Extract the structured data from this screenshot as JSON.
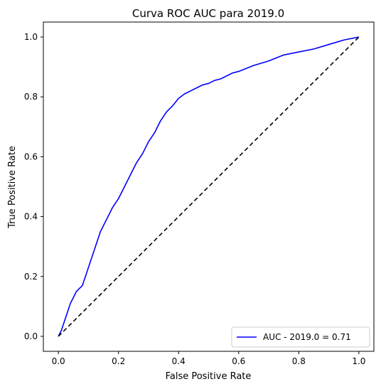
{
  "chart_data": {
    "type": "line",
    "title": "Curva ROC AUC para 2019.0",
    "xlabel": "False Positive Rate",
    "ylabel": "True Positive Rate",
    "xlim": [
      -0.05,
      1.05
    ],
    "ylim": [
      -0.05,
      1.05
    ],
    "xticks": [
      "0.0",
      "0.2",
      "0.4",
      "0.6",
      "0.8",
      "1.0"
    ],
    "yticks": [
      "0.0",
      "0.2",
      "0.4",
      "0.6",
      "0.8",
      "1.0"
    ],
    "grid": false,
    "legend_position": "lower right",
    "series": [
      {
        "name": "AUC - 2019.0 = 0.71",
        "color": "#0000ff",
        "style": "solid",
        "x": [
          0.0,
          0.01,
          0.02,
          0.03,
          0.04,
          0.05,
          0.06,
          0.08,
          0.1,
          0.12,
          0.14,
          0.16,
          0.18,
          0.2,
          0.22,
          0.24,
          0.26,
          0.28,
          0.3,
          0.32,
          0.34,
          0.36,
          0.38,
          0.4,
          0.42,
          0.44,
          0.46,
          0.48,
          0.5,
          0.52,
          0.54,
          0.56,
          0.58,
          0.6,
          0.65,
          0.7,
          0.75,
          0.8,
          0.85,
          0.9,
          0.95,
          1.0
        ],
        "y": [
          0.0,
          0.02,
          0.05,
          0.08,
          0.11,
          0.13,
          0.15,
          0.17,
          0.23,
          0.29,
          0.35,
          0.39,
          0.43,
          0.46,
          0.5,
          0.54,
          0.58,
          0.61,
          0.65,
          0.68,
          0.72,
          0.75,
          0.77,
          0.795,
          0.81,
          0.82,
          0.83,
          0.84,
          0.845,
          0.855,
          0.86,
          0.87,
          0.88,
          0.885,
          0.905,
          0.92,
          0.94,
          0.95,
          0.96,
          0.975,
          0.99,
          1.0
        ]
      },
      {
        "name": "",
        "color": "#000000",
        "style": "dashed",
        "x": [
          0.0,
          1.0
        ],
        "y": [
          0.0,
          1.0
        ]
      }
    ]
  }
}
